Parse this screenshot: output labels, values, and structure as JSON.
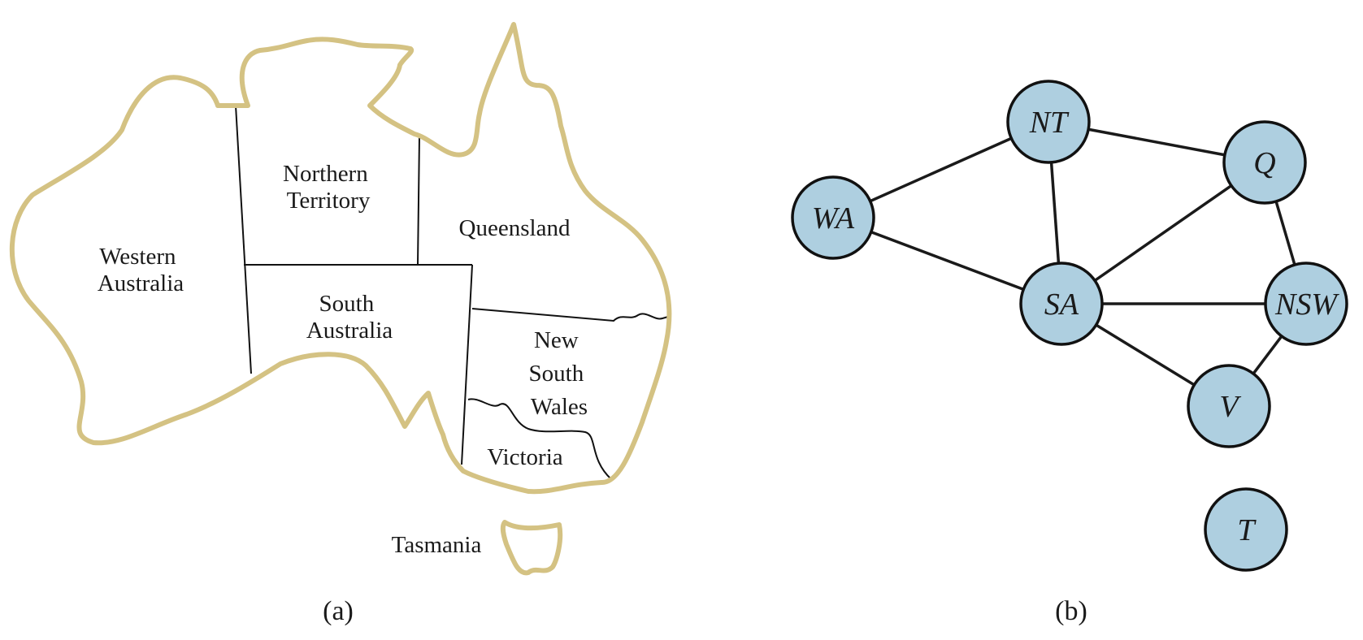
{
  "map": {
    "regions": {
      "western_australia": [
        "Western",
        "Australia"
      ],
      "northern_territory": [
        "Northern",
        "Territory"
      ],
      "queensland": [
        "Queensland"
      ],
      "south_australia": [
        "South",
        "Australia"
      ],
      "new_south_wales": [
        "New",
        "South",
        "Wales"
      ],
      "victoria": [
        "Victoria"
      ],
      "tasmania": [
        "Tasmania"
      ]
    },
    "caption": "(a)",
    "coast_color": "#d4c283"
  },
  "graph": {
    "caption": "(b)",
    "node_fill": "#aecfe0",
    "nodes": [
      {
        "id": "WA",
        "label": "WA"
      },
      {
        "id": "NT",
        "label": "NT"
      },
      {
        "id": "Q",
        "label": "Q"
      },
      {
        "id": "SA",
        "label": "SA"
      },
      {
        "id": "NSW",
        "label": "NSW"
      },
      {
        "id": "V",
        "label": "V"
      },
      {
        "id": "T",
        "label": "T"
      }
    ],
    "edges": [
      [
        "WA",
        "NT"
      ],
      [
        "WA",
        "SA"
      ],
      [
        "NT",
        "SA"
      ],
      [
        "NT",
        "Q"
      ],
      [
        "Q",
        "SA"
      ],
      [
        "Q",
        "NSW"
      ],
      [
        "SA",
        "NSW"
      ],
      [
        "SA",
        "V"
      ],
      [
        "NSW",
        "V"
      ]
    ]
  }
}
